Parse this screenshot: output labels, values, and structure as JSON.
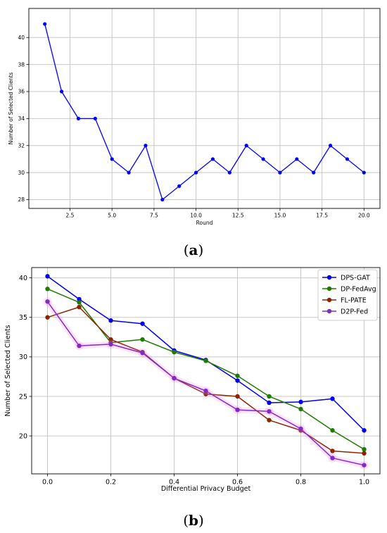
{
  "chart_data": [
    {
      "type": "line",
      "title": "",
      "xlabel": "Round",
      "ylabel": "Number of Selected Clients",
      "xlim": [
        0.05,
        20.95
      ],
      "ylim": [
        27.35,
        42.15
      ],
      "xticks": [
        2.5,
        5.0,
        7.5,
        10.0,
        12.5,
        15.0,
        17.5,
        20.0
      ],
      "xtick_labels": [
        "2.5",
        "5.0",
        "7.5",
        "10.0",
        "12.5",
        "15.0",
        "17.5",
        "20.0"
      ],
      "yticks": [
        28,
        30,
        32,
        34,
        36,
        38,
        40
      ],
      "ytick_labels": [
        "28",
        "30",
        "32",
        "34",
        "36",
        "38",
        "40"
      ],
      "grid": true,
      "series": [
        {
          "color": "#0000ff",
          "x": [
            1,
            2,
            3,
            4,
            5,
            6,
            7,
            8,
            9,
            10,
            11,
            12,
            13,
            14,
            15,
            16,
            17,
            18,
            19,
            20
          ],
          "y": [
            41,
            36,
            34,
            34,
            31,
            30,
            32,
            28,
            29,
            30,
            31,
            30,
            32,
            31,
            30,
            31,
            30,
            32,
            31,
            30
          ]
        }
      ]
    },
    {
      "type": "line",
      "title": "",
      "xlabel": "Differential Privacy Budget",
      "ylabel": "Number of Selected Clients",
      "xlim": [
        -0.05,
        1.05
      ],
      "ylim": [
        15.2,
        41.3
      ],
      "xticks": [
        0.0,
        0.2,
        0.4,
        0.6,
        0.8,
        1.0
      ],
      "xtick_labels": [
        "0.0",
        "0.2",
        "0.4",
        "0.6",
        "0.8",
        "1.0"
      ],
      "yticks": [
        20,
        25,
        30,
        35,
        40
      ],
      "ytick_labels": [
        "20",
        "25",
        "30",
        "35",
        "40"
      ],
      "grid": true,
      "legend_position": "top-right",
      "x": [
        0.0,
        0.1,
        0.2,
        0.3,
        0.4,
        0.5,
        0.6,
        0.7,
        0.8,
        0.9,
        1.0
      ],
      "series": [
        {
          "name": "DPS-GAT",
          "color": "#0000ee",
          "values": [
            40.2,
            37.3,
            34.6,
            34.2,
            30.8,
            29.6,
            27.0,
            24.2,
            24.3,
            24.7,
            20.7
          ]
        },
        {
          "name": "DP-FedAvg",
          "color": "#1e7a00",
          "values": [
            38.6,
            36.9,
            31.8,
            32.2,
            30.6,
            29.5,
            27.6,
            25.0,
            23.4,
            20.7,
            18.3
          ]
        },
        {
          "name": "FL-PATE",
          "color": "#8b2500",
          "values": [
            35.0,
            36.3,
            32.2,
            30.6,
            27.3,
            25.3,
            25.0,
            22.0,
            20.7,
            18.1,
            17.8
          ]
        },
        {
          "name": "D2P-Fed",
          "color": "#7b2fbf",
          "glow": "#ff66ff",
          "values": [
            37.0,
            31.4,
            31.6,
            30.5,
            27.3,
            25.7,
            23.3,
            23.1,
            20.9,
            17.2,
            16.3
          ]
        }
      ]
    }
  ],
  "captions": {
    "a_letter": "a",
    "b_letter": "b"
  }
}
